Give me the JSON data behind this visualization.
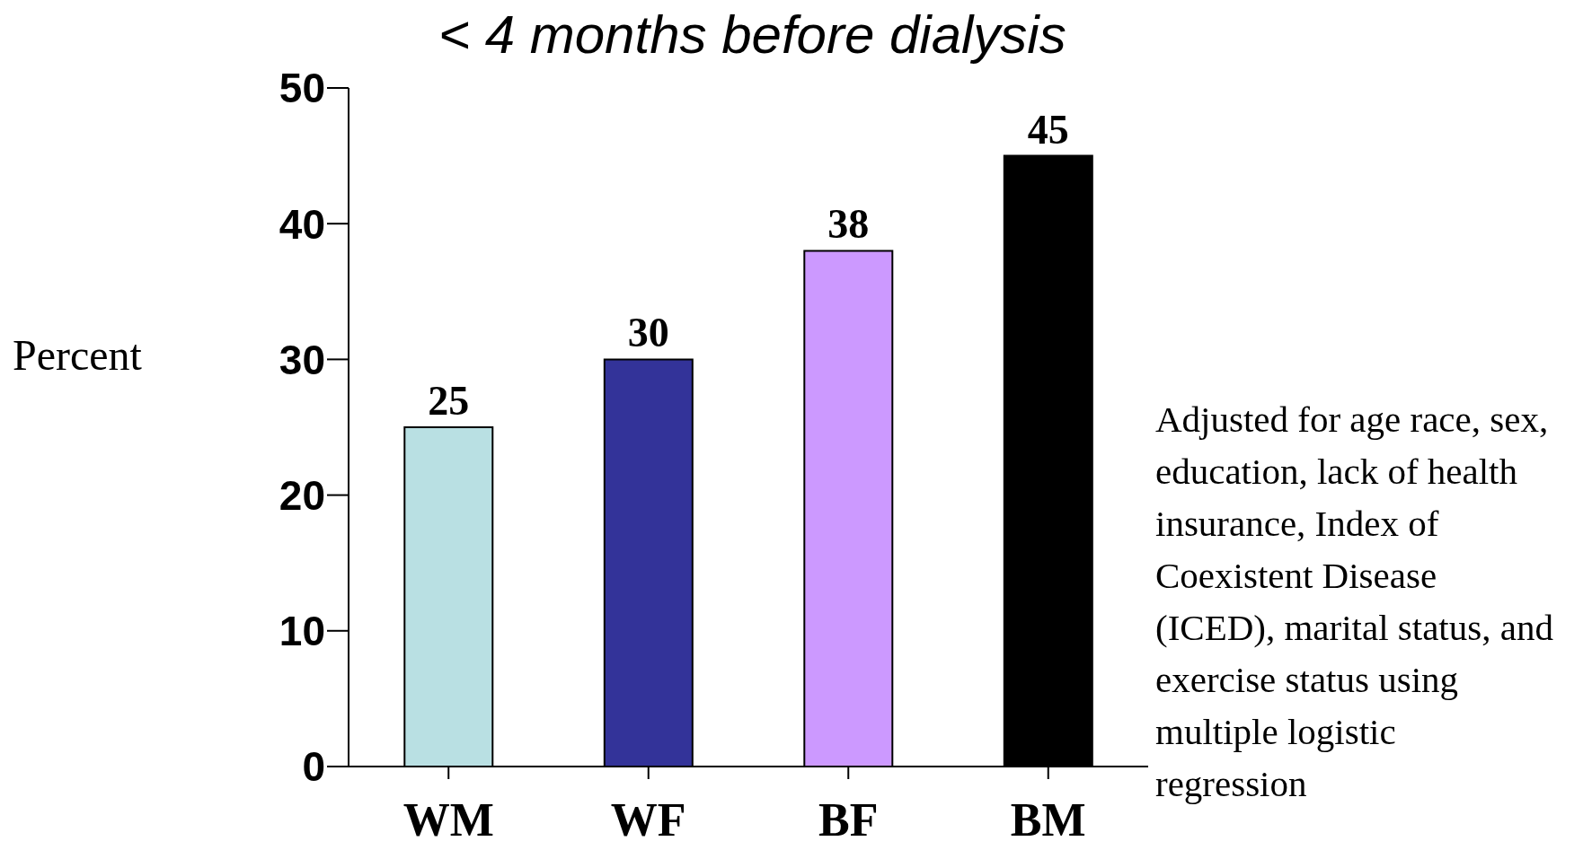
{
  "chart_data": {
    "type": "bar",
    "title": "< 4 months before dialysis",
    "ylabel": "Percent",
    "categories": [
      "WM",
      "WF",
      "BF",
      "BM"
    ],
    "values": [
      25,
      30,
      38,
      45
    ],
    "colors": [
      "#b9e0e3",
      "#333399",
      "#cc99ff",
      "#000000"
    ],
    "ylim": [
      0,
      50
    ],
    "yticks": [
      0,
      10,
      20,
      30,
      40,
      50
    ],
    "grid": false,
    "data_labels": true,
    "legend": false,
    "annotations": [
      "Adjusted for age race, sex, education, lack of health insurance, Index of Coexistent Disease (ICED), marital status, and exercise status using multiple logistic regression"
    ]
  }
}
